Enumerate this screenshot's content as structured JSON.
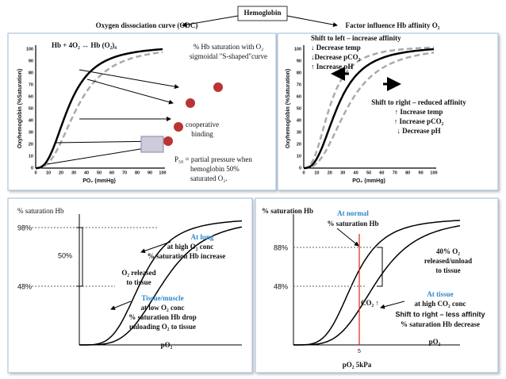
{
  "header": {
    "title": "Hemoglobin",
    "left": "Oxygen dissociation curve (ODC)",
    "right": "Factor influence Hb affinity O₂"
  },
  "panels": {
    "odc": {
      "equation": "Hb + 4O₂  ↔  Hb (O₂)₄",
      "note": [
        "% Hb saturation with O₂",
        "sigmoidal \"S-shaped\"curve"
      ],
      "cooperative": [
        "cooperative",
        "binding"
      ],
      "p50": [
        "P₅₀ = partial pressure when",
        "hemoglobin 50%",
        "saturated O₂."
      ],
      "y_axis": "Oxyhemoglobin (%Saturation)",
      "x_axis": "PO₂ (mmHg)",
      "ticks": [
        0,
        10,
        20,
        30,
        40,
        50,
        60,
        70,
        80,
        90,
        100
      ]
    },
    "factors": {
      "y_axis": "Oxyhemoglobin (%Saturation)",
      "x_axis": "PO₂ (mmHg)",
      "ticks": [
        0,
        10,
        20,
        30,
        40,
        50,
        60,
        70,
        80,
        90,
        100
      ],
      "left_title": "Shift to left – increase affinity",
      "left": [
        "↓ Decrease temp",
        "↓Decrease pCO₂",
        "↑ Increase pH"
      ],
      "right_title": "Shift to right – reduced affinity",
      "right": [
        "↑ Increase temp",
        "↑ Increase pCO₂",
        "↓ Decrease pH"
      ]
    },
    "loading": {
      "y_axis": "% saturation Hb",
      "x_axis": "pO₂",
      "ticks": [
        "98%",
        "50%",
        "48%"
      ],
      "lung": [
        "At lung",
        "at high O₂ conc",
        "% saturation Hb increase"
      ],
      "released": [
        "O₂ released",
        "to tissue"
      ],
      "tissue": [
        "Tissue/muscle",
        "at low O₂ conc",
        "% saturation Hb drop",
        "unloading O₂ to tissue"
      ]
    },
    "co2": {
      "y_axis": "% saturation Hb",
      "normal": [
        "At normal",
        "% saturation Hb"
      ],
      "ticks": [
        "88%",
        "48%"
      ],
      "released": [
        "40% O₂",
        "released/unload",
        "to tissue"
      ],
      "co2": "CO₂ ↑",
      "tissue": [
        "At tissue",
        "at high CO₂ conc",
        "Shift to right – less affinity",
        "% saturation Hb decrease"
      ],
      "x_axis": "pO₂",
      "x_tick": "5",
      "x_caption": "pO₂  5kPa"
    }
  }
}
